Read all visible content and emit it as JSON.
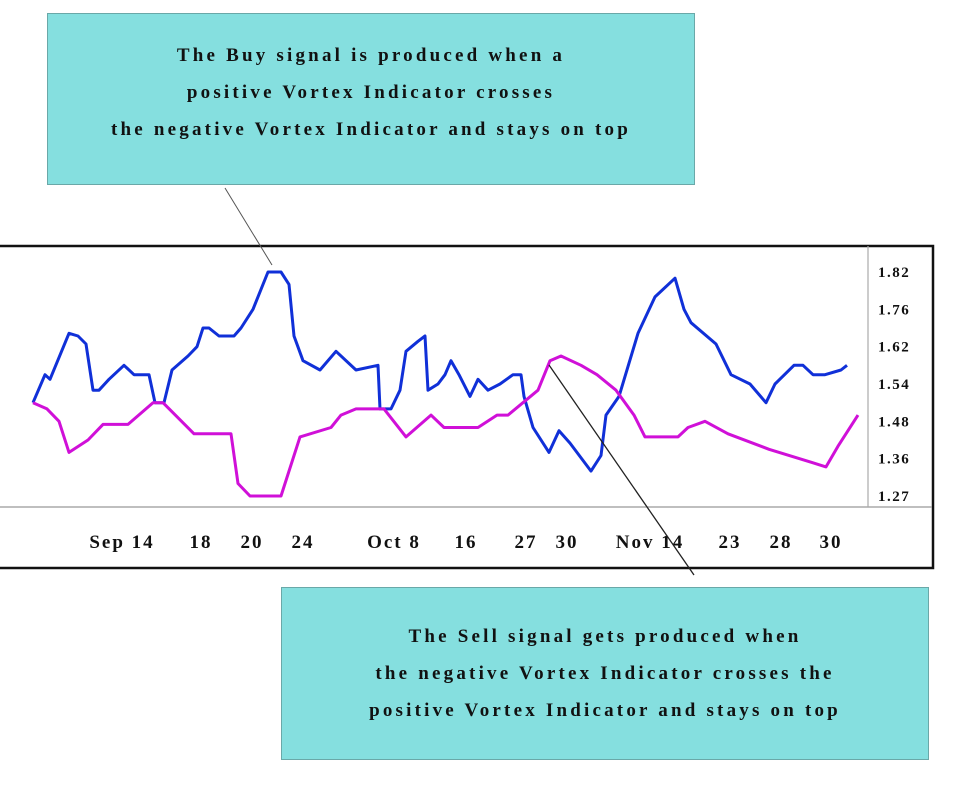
{
  "annotations": {
    "buy": [
      "The Buy signal is produced when a",
      "positive Vortex Indicator crosses",
      "the negative Vortex Indicator and stays on top"
    ],
    "sell": [
      "The Sell signal gets produced when",
      "the negative Vortex Indicator crosses the",
      "positive Vortex Indicator and stays on top"
    ],
    "box_color": "#85dfdf"
  },
  "chart_data": {
    "type": "line",
    "grid": false,
    "y_axis_position": "right",
    "y_ticks": [
      "1.82",
      "1.76",
      "1.62",
      "1.54",
      "1.48",
      "1.36",
      "1.27"
    ],
    "x_ticks": [
      "Sep 14",
      "18",
      "20",
      "24",
      "Oct 8",
      "16",
      "27",
      "30",
      "Nov 14",
      "23",
      "28",
      "30"
    ],
    "series": [
      {
        "color": "#1030d8",
        "values": [
          1.51,
          1.56,
          1.55,
          1.67,
          1.66,
          1.63,
          1.53,
          1.53,
          1.55,
          1.58,
          1.56,
          1.56,
          1.51,
          1.51,
          1.57,
          1.6,
          1.62,
          1.69,
          1.69,
          1.66,
          1.66,
          1.69,
          1.76,
          1.82,
          1.82,
          1.8,
          1.66,
          1.59,
          1.57,
          1.61,
          1.57,
          1.58,
          1.5,
          1.5,
          1.53,
          1.61,
          1.64,
          1.66,
          1.53,
          1.54,
          1.56,
          1.59,
          1.56,
          1.52,
          1.55,
          1.53,
          1.54,
          1.56,
          1.56,
          1.52,
          1.46,
          1.38,
          1.45,
          1.41,
          1.33,
          1.37,
          1.49,
          1.52,
          1.67,
          1.78,
          1.81,
          1.76,
          1.71,
          1.63,
          1.56,
          1.54,
          1.51,
          1.54,
          1.58,
          1.58,
          1.56,
          1.56,
          1.57,
          1.58
        ]
      },
      {
        "color": "#d010d8",
        "values": [
          1.51,
          1.5,
          1.48,
          1.38,
          1.42,
          1.47,
          1.47,
          1.51,
          1.51,
          1.44,
          1.44,
          1.3,
          1.27,
          1.27,
          1.43,
          1.46,
          1.49,
          1.5,
          1.5,
          1.43,
          1.49,
          1.46,
          1.46,
          1.49,
          1.49,
          1.53,
          1.59,
          1.6,
          1.58,
          1.56,
          1.53,
          1.49,
          1.43,
          1.43,
          1.46,
          1.48,
          1.44,
          1.39,
          1.35,
          1.34,
          1.4,
          1.49
        ]
      }
    ]
  }
}
